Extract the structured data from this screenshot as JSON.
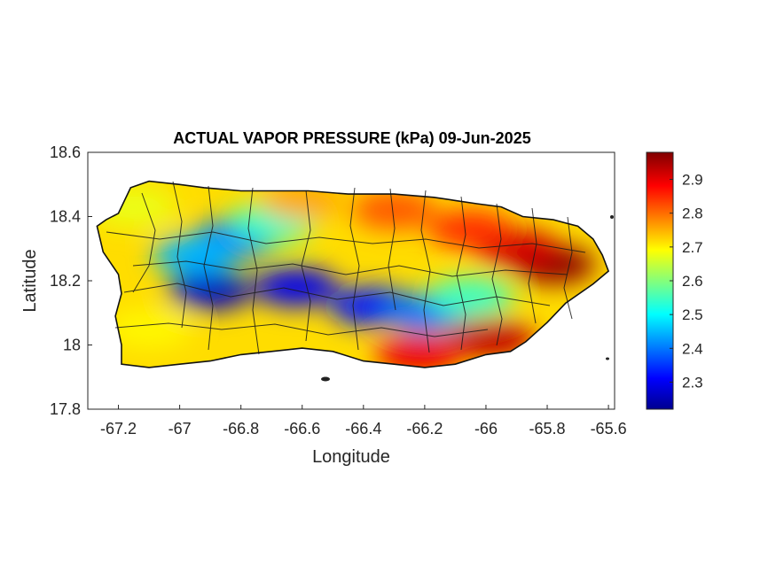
{
  "chart_data": {
    "type": "heatmap",
    "title": "ACTUAL VAPOR PRESSURE (kPa) 09-Jun-2025",
    "xlabel": "Longitude",
    "ylabel": "Latitude",
    "xlim": [
      -67.3,
      -65.58
    ],
    "ylim": [
      17.8,
      18.6
    ],
    "xticks": [
      -67.2,
      -67,
      -66.8,
      -66.6,
      -66.4,
      -66.2,
      -66,
      -65.8,
      -65.6
    ],
    "yticks": [
      17.8,
      18,
      18.2,
      18.4,
      18.6
    ],
    "xtick_labels": [
      "-67.2",
      "-67",
      "-66.8",
      "-66.6",
      "-66.4",
      "-66.2",
      "-66",
      "-65.8",
      "-65.6"
    ],
    "ytick_labels": [
      "17.8",
      "18",
      "18.2",
      "18.4",
      "18.6"
    ],
    "grid": false,
    "colormap": "jet",
    "colorbar": {
      "range": [
        2.22,
        2.98
      ],
      "ticks": [
        2.3,
        2.4,
        2.5,
        2.6,
        2.7,
        2.8,
        2.9
      ],
      "tick_labels": [
        "2.3",
        "2.4",
        "2.5",
        "2.6",
        "2.7",
        "2.8",
        "2.9"
      ],
      "placement": "right"
    },
    "island_outline": [
      [
        -67.27,
        18.37
      ],
      [
        -67.24,
        18.39
      ],
      [
        -67.2,
        18.41
      ],
      [
        -67.16,
        18.49
      ],
      [
        -67.1,
        18.51
      ],
      [
        -67.0,
        18.5
      ],
      [
        -66.92,
        18.49
      ],
      [
        -66.8,
        18.48
      ],
      [
        -66.7,
        18.48
      ],
      [
        -66.58,
        18.48
      ],
      [
        -66.45,
        18.47
      ],
      [
        -66.3,
        18.47
      ],
      [
        -66.17,
        18.46
      ],
      [
        -66.1,
        18.45
      ],
      [
        -66.03,
        18.44
      ],
      [
        -65.95,
        18.43
      ],
      [
        -65.88,
        18.4
      ],
      [
        -65.78,
        18.39
      ],
      [
        -65.7,
        18.37
      ],
      [
        -65.65,
        18.33
      ],
      [
        -65.62,
        18.28
      ],
      [
        -65.6,
        18.23
      ],
      [
        -65.65,
        18.19
      ],
      [
        -65.74,
        18.13
      ],
      [
        -65.8,
        18.07
      ],
      [
        -65.87,
        18.01
      ],
      [
        -65.92,
        17.98
      ],
      [
        -66.0,
        17.97
      ],
      [
        -66.1,
        17.94
      ],
      [
        -66.2,
        17.93
      ],
      [
        -66.3,
        17.94
      ],
      [
        -66.4,
        17.95
      ],
      [
        -66.5,
        17.98
      ],
      [
        -66.6,
        17.99
      ],
      [
        -66.7,
        17.98
      ],
      [
        -66.8,
        17.97
      ],
      [
        -66.9,
        17.95
      ],
      [
        -67.0,
        17.94
      ],
      [
        -67.1,
        17.93
      ],
      [
        -67.19,
        17.94
      ],
      [
        -67.19,
        18.0
      ],
      [
        -67.21,
        18.09
      ],
      [
        -67.19,
        18.16
      ],
      [
        -67.2,
        18.22
      ],
      [
        -67.25,
        18.29
      ],
      [
        -67.27,
        18.37
      ]
    ],
    "value_field": {
      "background_kPa": 2.72,
      "features": [
        {
          "lon": -66.9,
          "lat": 18.17,
          "kPa": 2.27
        },
        {
          "lon": -66.82,
          "lat": 18.33,
          "kPa": 2.39
        },
        {
          "lon": -66.62,
          "lat": 18.18,
          "kPa": 2.3
        },
        {
          "lon": -66.95,
          "lat": 18.28,
          "kPa": 2.45
        },
        {
          "lon": -66.37,
          "lat": 18.12,
          "kPa": 2.33
        },
        {
          "lon": -66.2,
          "lat": 18.1,
          "kPa": 2.4
        },
        {
          "lon": -66.7,
          "lat": 18.38,
          "kPa": 2.55
        },
        {
          "lon": -66.05,
          "lat": 18.15,
          "kPa": 2.55
        },
        {
          "lon": -65.78,
          "lat": 18.25,
          "kPa": 2.97
        },
        {
          "lon": -65.9,
          "lat": 18.3,
          "kPa": 2.92
        },
        {
          "lon": -66.05,
          "lat": 18.36,
          "kPa": 2.85
        },
        {
          "lon": -66.3,
          "lat": 18.42,
          "kPa": 2.82
        },
        {
          "lon": -65.98,
          "lat": 18.02,
          "kPa": 2.93
        },
        {
          "lon": -66.22,
          "lat": 17.97,
          "kPa": 2.9
        },
        {
          "lon": -66.6,
          "lat": 18.45,
          "kPa": 2.76
        },
        {
          "lon": -67.1,
          "lat": 18.05,
          "kPa": 2.7
        },
        {
          "lon": -67.15,
          "lat": 18.43,
          "kPa": 2.68
        }
      ]
    }
  }
}
